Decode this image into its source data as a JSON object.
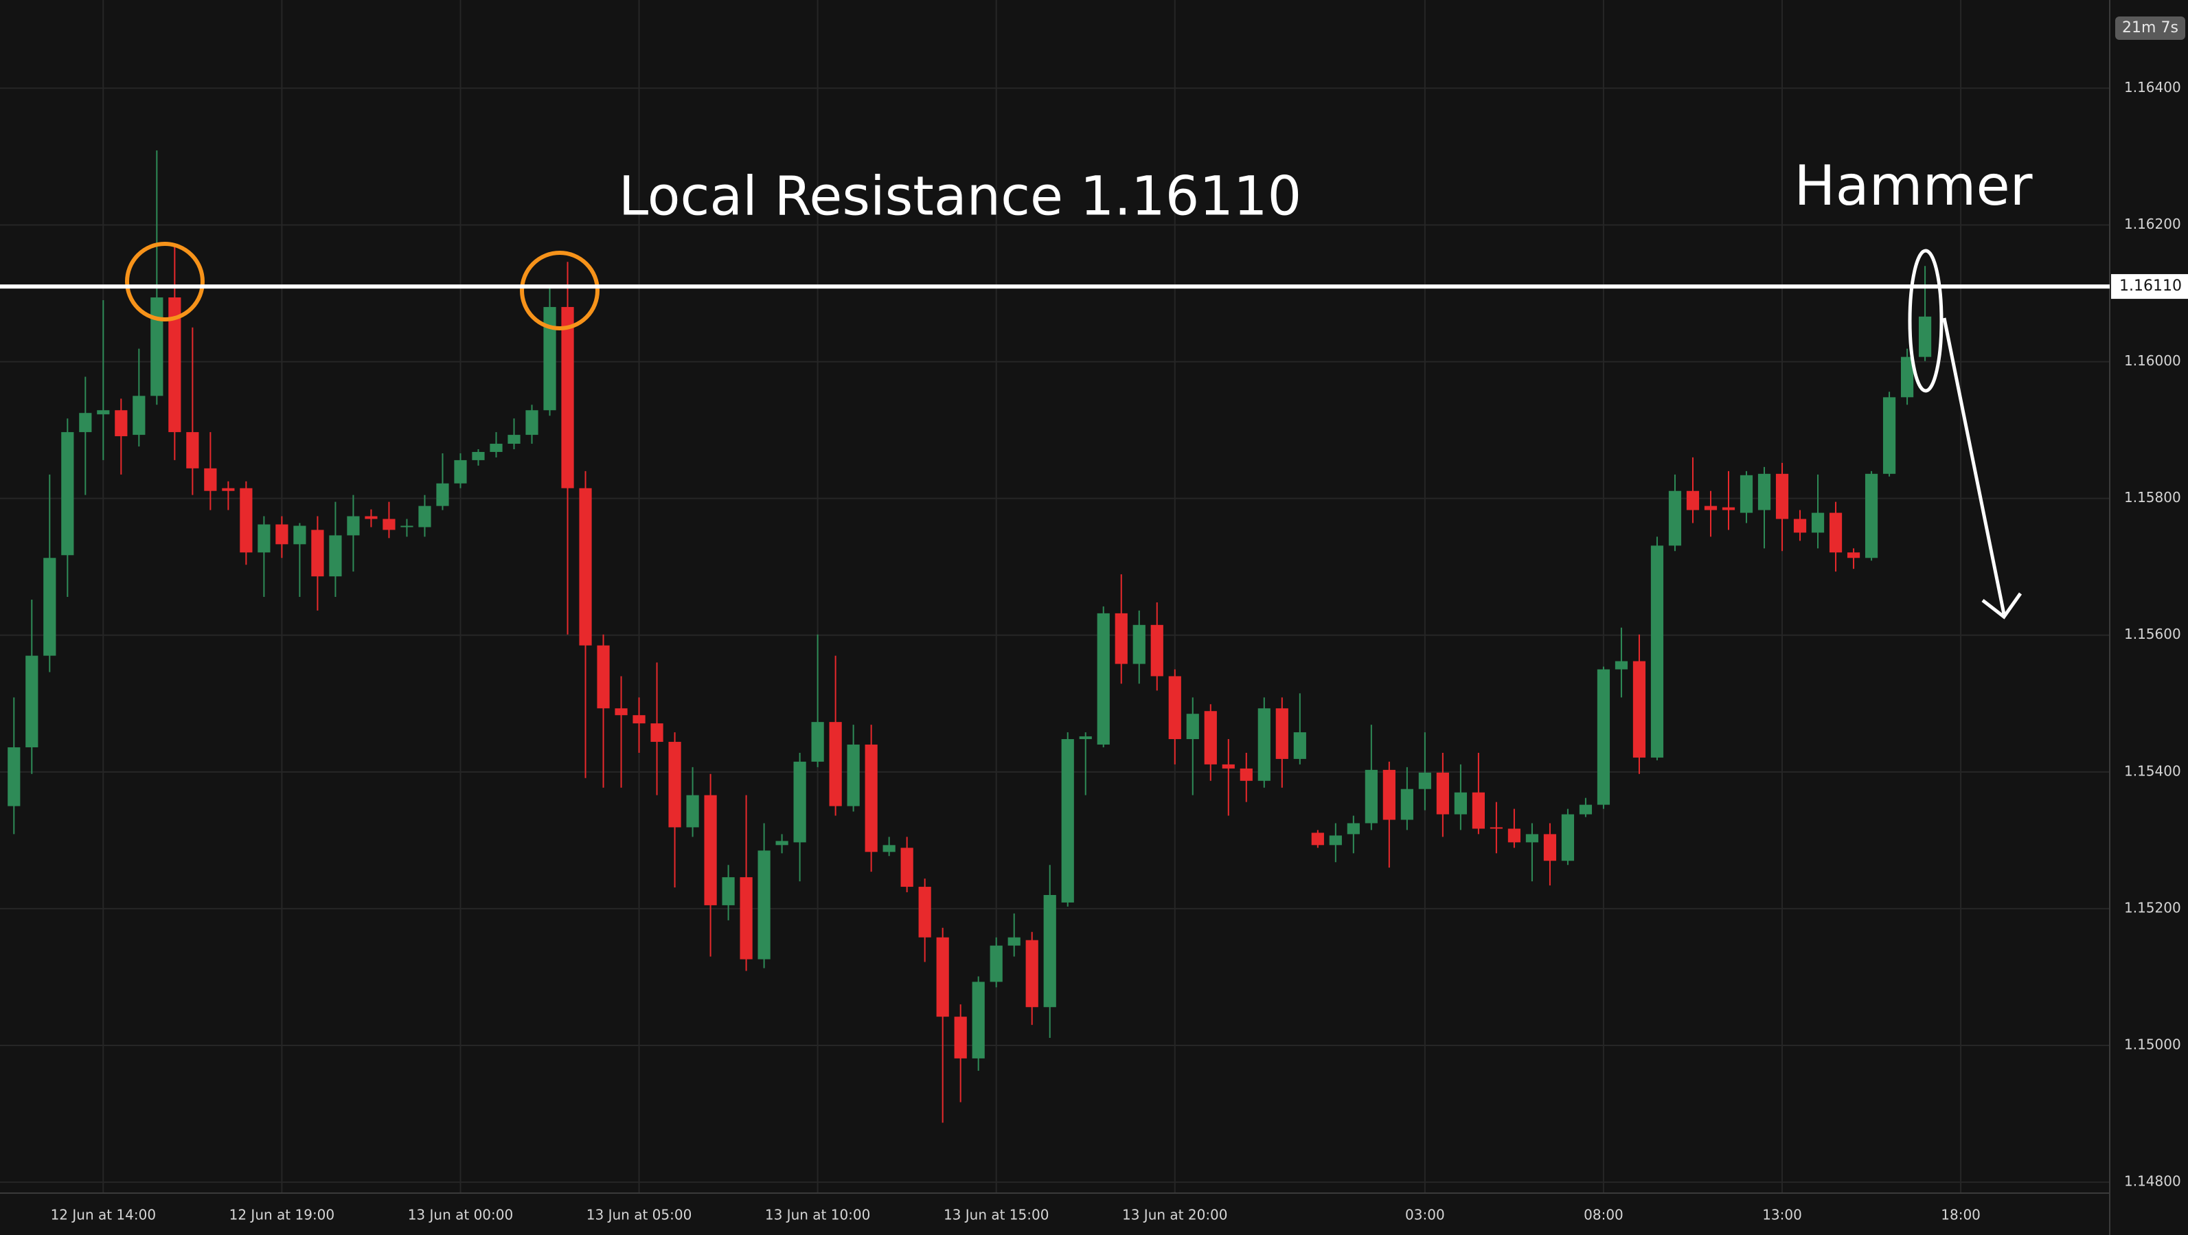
{
  "chart_data": {
    "type": "candlestick",
    "annotation": "Local Resistance 1.16110",
    "pattern_label": "Hammer",
    "countdown": "21m 7s",
    "resistance": {
      "value": 1.1611,
      "label": "1.16110"
    },
    "up_color": "#2e8b57",
    "down_color": "#e8292c",
    "grid": true,
    "xlim": [
      -0.78,
      117.34
    ],
    "ylim": [
      1.14784,
      1.16529
    ],
    "xticks": [
      {
        "value": 5,
        "label": "12 Jun at 14:00"
      },
      {
        "value": 15,
        "label": "12 Jun at 19:00"
      },
      {
        "value": 25,
        "label": "13 Jun at 00:00"
      },
      {
        "value": 35,
        "label": "13 Jun at 05:00"
      },
      {
        "value": 45,
        "label": "13 Jun at 10:00"
      },
      {
        "value": 55,
        "label": "13 Jun at 15:00"
      },
      {
        "value": 65,
        "label": "13 Jun at 20:00"
      },
      {
        "value": 79,
        "label": "03:00"
      },
      {
        "value": 89,
        "label": "08:00"
      },
      {
        "value": 99,
        "label": "13:00"
      },
      {
        "value": 109,
        "label": "18:00"
      }
    ],
    "yticks": [
      {
        "value": 1.164,
        "label": "1.16400"
      },
      {
        "value": 1.162,
        "label": "1.16200"
      },
      {
        "value": 1.16,
        "label": "1.16000"
      },
      {
        "value": 1.158,
        "label": "1.15800"
      },
      {
        "value": 1.156,
        "label": "1.15600"
      },
      {
        "value": 1.154,
        "label": "1.15400"
      },
      {
        "value": 1.152,
        "label": "1.15200"
      },
      {
        "value": 1.15,
        "label": "1.15000"
      },
      {
        "value": 1.148,
        "label": "1.14800"
      }
    ],
    "candles": {
      "open": [
        1.1535,
        1.15436,
        1.1557,
        1.15717,
        1.15897,
        1.15923,
        1.15929,
        1.15893,
        1.1595,
        1.16094,
        1.15897,
        1.15844,
        1.15815,
        1.15815,
        1.15721,
        1.15762,
        1.15733,
        1.15754,
        1.15686,
        1.15746,
        1.15774,
        1.1577,
        1.15758,
        1.15758,
        1.15789,
        1.15822,
        1.15856,
        1.15868,
        1.1588,
        1.15893,
        1.15929,
        1.1608,
        1.15815,
        1.15585,
        1.15493,
        1.15483,
        1.15471,
        1.15444,
        1.15319,
        1.15366,
        1.15205,
        1.15246,
        1.15126,
        1.15293,
        1.15297,
        1.15415,
        1.15473,
        1.1535,
        1.1544,
        1.15283,
        1.15289,
        1.15232,
        1.15158,
        1.15042,
        1.14981,
        1.15093,
        1.15146,
        1.15154,
        1.15056,
        1.15209,
        1.15448,
        1.1544,
        1.15632,
        1.15558,
        1.15615,
        1.1554,
        1.15448,
        1.15489,
        1.15411,
        1.15405,
        1.15387,
        1.15493,
        1.15419,
        1.15311,
        1.15293,
        1.15309,
        1.15325,
        1.15403,
        1.1533,
        1.15375,
        1.15399,
        1.15338,
        1.1537,
        1.15319,
        1.15317,
        1.15297,
        1.15309,
        1.1527,
        1.15338,
        1.15352,
        1.1555,
        1.15562,
        1.15421,
        1.15731,
        1.15811,
        1.15789,
        1.15787,
        1.15779,
        1.15783,
        1.15836,
        1.1577,
        1.1575,
        1.15779,
        1.15721,
        1.15713,
        1.15836,
        1.15948,
        1.16007
      ],
      "high": [
        1.15509,
        1.15652,
        1.15835,
        1.15917,
        1.15978,
        1.1609,
        1.15946,
        1.16019,
        1.16309,
        1.16172,
        1.1605,
        1.15897,
        1.15825,
        1.15825,
        1.15774,
        1.15774,
        1.15764,
        1.15774,
        1.15795,
        1.15805,
        1.15784,
        1.15795,
        1.1577,
        1.15805,
        1.15866,
        1.15866,
        1.15872,
        1.15897,
        1.15917,
        1.15937,
        1.16111,
        1.16146,
        1.1584,
        1.15601,
        1.1554,
        1.15509,
        1.1556,
        1.15458,
        1.15407,
        1.15397,
        1.15264,
        1.15366,
        1.15325,
        1.15309,
        1.15428,
        1.15601,
        1.1557,
        1.15469,
        1.15469,
        1.15305,
        1.15305,
        1.15244,
        1.15172,
        1.1506,
        1.15101,
        1.15158,
        1.15193,
        1.15166,
        1.15264,
        1.15458,
        1.15458,
        1.15642,
        1.15689,
        1.15636,
        1.15648,
        1.1555,
        1.15509,
        1.15499,
        1.15448,
        1.15428,
        1.15509,
        1.15509,
        1.15515,
        1.15315,
        1.15325,
        1.15336,
        1.15469,
        1.15415,
        1.15407,
        1.15458,
        1.15428,
        1.15411,
        1.15428,
        1.15356,
        1.15346,
        1.15325,
        1.15325,
        1.15346,
        1.15362,
        1.15554,
        1.15611,
        1.15601,
        1.15744,
        1.15835,
        1.1586,
        1.15811,
        1.1584,
        1.1584,
        1.15846,
        1.15852,
        1.15783,
        1.15835,
        1.15795,
        1.15727,
        1.1584,
        1.15956,
        1.16019,
        1.1614
      ],
      "low": [
        1.15309,
        1.15397,
        1.15546,
        1.15656,
        1.15805,
        1.15856,
        1.15835,
        1.15876,
        1.15937,
        1.15856,
        1.15805,
        1.15783,
        1.15783,
        1.15703,
        1.15656,
        1.15713,
        1.15656,
        1.15636,
        1.15656,
        1.15693,
        1.15758,
        1.15742,
        1.15744,
        1.15744,
        1.15783,
        1.15815,
        1.15848,
        1.1586,
        1.15872,
        1.1588,
        1.15921,
        1.15601,
        1.15391,
        1.15377,
        1.15377,
        1.15428,
        1.15366,
        1.15231,
        1.15305,
        1.1513,
        1.15183,
        1.15109,
        1.15113,
        1.15281,
        1.1524,
        1.15407,
        1.15336,
        1.15342,
        1.15254,
        1.15277,
        1.15224,
        1.15122,
        1.14887,
        1.14917,
        1.14963,
        1.15085,
        1.1513,
        1.1503,
        1.15011,
        1.15203,
        1.15366,
        1.15436,
        1.15529,
        1.15529,
        1.15519,
        1.15411,
        1.15366,
        1.15387,
        1.15336,
        1.15356,
        1.15377,
        1.15377,
        1.15411,
        1.15289,
        1.15268,
        1.15281,
        1.15315,
        1.1526,
        1.15315,
        1.15344,
        1.15305,
        1.15315,
        1.15309,
        1.15281,
        1.15289,
        1.1524,
        1.15234,
        1.15264,
        1.15334,
        1.15346,
        1.15509,
        1.15397,
        1.15417,
        1.15723,
        1.15764,
        1.15744,
        1.15754,
        1.15764,
        1.15727,
        1.15723,
        1.15738,
        1.15727,
        1.15693,
        1.15697,
        1.15709,
        1.15832,
        1.15937,
        1.16001
      ],
      "close": [
        1.15436,
        1.1557,
        1.15713,
        1.15897,
        1.15925,
        1.15929,
        1.15891,
        1.1595,
        1.16094,
        1.15897,
        1.15844,
        1.15811,
        1.15811,
        1.15721,
        1.15762,
        1.15733,
        1.1576,
        1.15686,
        1.15746,
        1.15774,
        1.1577,
        1.15754,
        1.1576,
        1.15789,
        1.15822,
        1.15856,
        1.15868,
        1.1588,
        1.15893,
        1.15929,
        1.1608,
        1.15815,
        1.15585,
        1.15493,
        1.15483,
        1.15471,
        1.15444,
        1.15319,
        1.15366,
        1.15205,
        1.15246,
        1.15126,
        1.15285,
        1.15299,
        1.15415,
        1.15473,
        1.1535,
        1.1544,
        1.15283,
        1.15293,
        1.15232,
        1.15158,
        1.15042,
        1.14981,
        1.15093,
        1.15146,
        1.15158,
        1.15056,
        1.1522,
        1.15448,
        1.15452,
        1.15632,
        1.15558,
        1.15615,
        1.1554,
        1.15448,
        1.15485,
        1.15411,
        1.15405,
        1.15387,
        1.15493,
        1.15419,
        1.15458,
        1.15293,
        1.15307,
        1.15325,
        1.15403,
        1.1533,
        1.15375,
        1.15399,
        1.15338,
        1.1537,
        1.15317,
        1.15317,
        1.15297,
        1.15309,
        1.1527,
        1.15338,
        1.15352,
        1.1555,
        1.15562,
        1.15421,
        1.15731,
        1.15811,
        1.15783,
        1.15783,
        1.15783,
        1.15834,
        1.15836,
        1.1577,
        1.1575,
        1.15779,
        1.15721,
        1.15713,
        1.15836,
        1.15948,
        1.16007,
        1.16066
      ]
    }
  }
}
